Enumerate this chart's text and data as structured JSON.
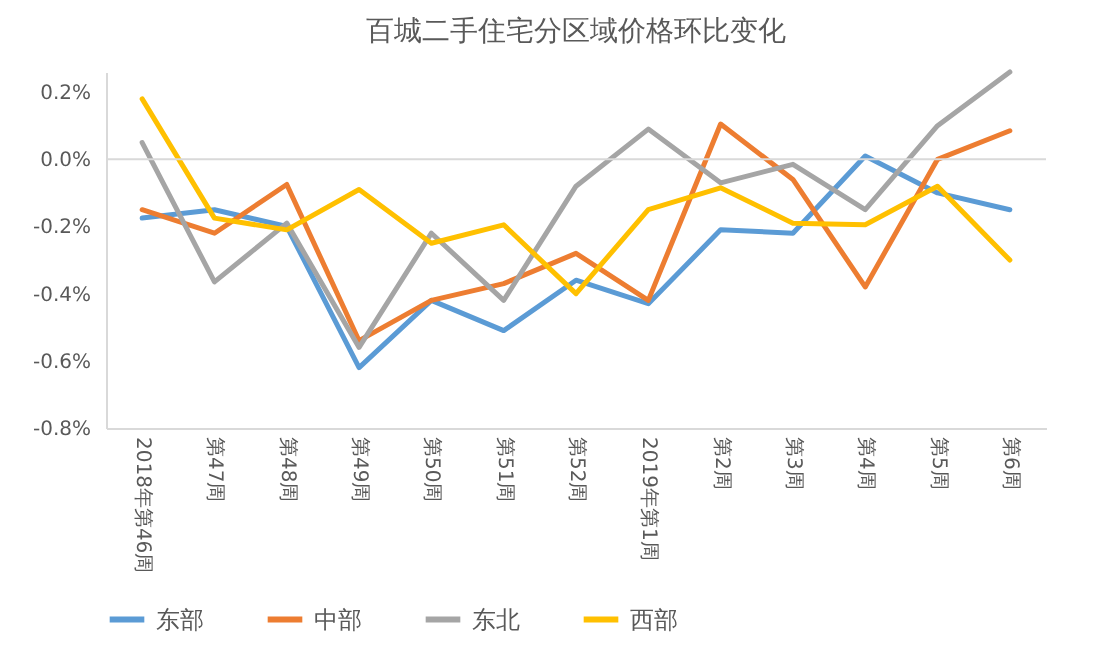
{
  "chart_data": {
    "type": "line",
    "title": "百城二手住宅分区域价格环比变化",
    "categories": [
      "2018年第46周",
      "第47周",
      "第48周",
      "第49周",
      "第50周",
      "第51周",
      "第52周",
      "2019年第1周",
      "第2周",
      "第3周",
      "第4周",
      "第5周",
      "第6周"
    ],
    "series": [
      {
        "name": "东部",
        "color": "#5b9bd5",
        "values": [
          -0.175,
          -0.15,
          -0.2,
          -0.62,
          -0.42,
          -0.51,
          -0.36,
          -0.43,
          -0.21,
          -0.22,
          0.01,
          -0.1,
          -0.15
        ]
      },
      {
        "name": "中部",
        "color": "#ed7d31",
        "values": [
          -0.15,
          -0.22,
          -0.075,
          -0.54,
          -0.42,
          -0.37,
          -0.28,
          -0.42,
          0.105,
          -0.06,
          -0.38,
          0.0,
          0.085
        ]
      },
      {
        "name": "东北",
        "color": "#a5a5a5",
        "values": [
          0.05,
          -0.365,
          -0.19,
          -0.56,
          -0.22,
          -0.42,
          -0.08,
          0.09,
          -0.07,
          -0.015,
          -0.15,
          0.1,
          0.26
        ]
      },
      {
        "name": "西部",
        "color": "#ffc000",
        "values": [
          0.18,
          -0.175,
          -0.21,
          -0.09,
          -0.25,
          -0.195,
          -0.4,
          -0.15,
          -0.085,
          -0.19,
          -0.195,
          -0.08,
          -0.3
        ]
      }
    ],
    "ylim": [
      -0.8,
      0.26
    ],
    "yticks": [
      {
        "value": -0.8,
        "label": "-0.8%"
      },
      {
        "value": -0.6,
        "label": "-0.6%"
      },
      {
        "value": -0.4,
        "label": "-0.4%"
      },
      {
        "value": -0.2,
        "label": "-0.2%"
      },
      {
        "value": 0,
        "label": "0.0%"
      },
      {
        "value": 0.2,
        "label": "0.2%"
      }
    ],
    "legend": "bottom",
    "line_style": "solid"
  }
}
